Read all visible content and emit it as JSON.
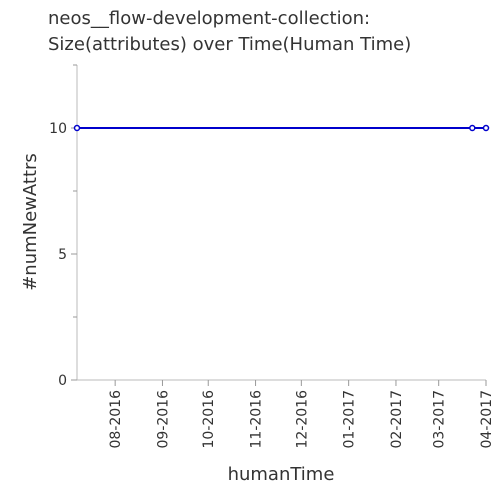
{
  "chart_data": {
    "type": "line",
    "title_lines": [
      "neos__flow-development-collection:",
      "Size(attributes) over Time(Human Time)"
    ],
    "xlabel": "humanTime",
    "ylabel": "#numNewAttrs",
    "x_ticks": [
      "08-2016",
      "09-2016",
      "10-2016",
      "11-2016",
      "12-2016",
      "01-2017",
      "02-2017",
      "03-2017",
      "04-2017"
    ],
    "x_range": [
      "2016-07-07",
      "2017-04-01"
    ],
    "y_ticks": [
      0,
      5,
      10
    ],
    "ylim": [
      0,
      12.5
    ],
    "grid": false,
    "color": "#0000cc",
    "series": [
      {
        "points": [
          {
            "x": "2016-07-07",
            "y": 10
          },
          {
            "x": "2017-03-23",
            "y": 10
          },
          {
            "x": "2017-04-01",
            "y": 10
          }
        ]
      }
    ]
  }
}
